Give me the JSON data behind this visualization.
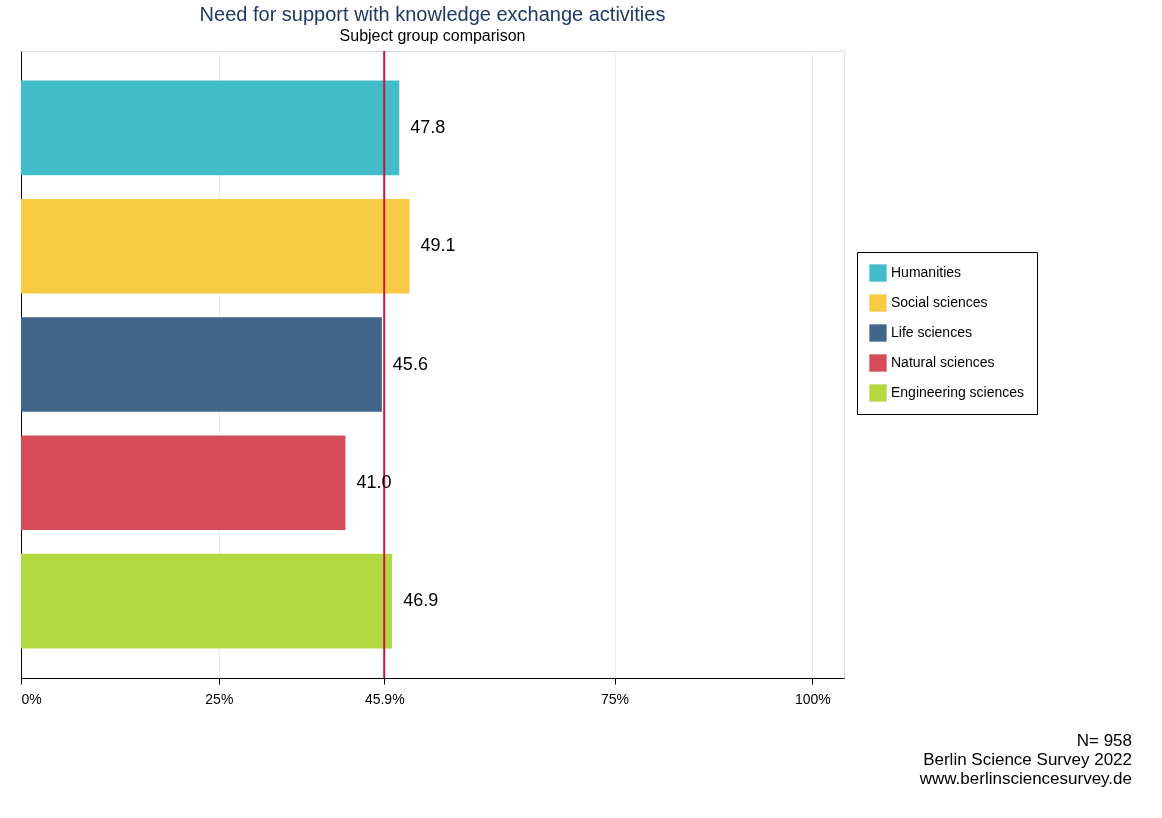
{
  "chart_data": {
    "type": "bar",
    "orientation": "horizontal",
    "title": "Need for support with knowledge exchange activities",
    "subtitle": "Subject group comparison",
    "categories": [
      null,
      null,
      null,
      null,
      null
    ],
    "series": [
      {
        "name": "Humanities",
        "color": "#42bcc8",
        "values": [
          47.8,
          null,
          null,
          null,
          null
        ],
        "value_labels": [
          "47.8",
          null,
          null,
          null,
          null
        ]
      },
      {
        "name": "Social sciences",
        "color": "#f7cb44",
        "values": [
          null,
          49.1,
          null,
          null,
          null
        ],
        "value_labels": [
          null,
          "49.1",
          null,
          null,
          null
        ]
      },
      {
        "name": "Life sciences",
        "color": "#426689",
        "values": [
          null,
          null,
          45.6,
          null,
          null
        ],
        "value_labels": [
          null,
          null,
          "45.6",
          null,
          null
        ]
      },
      {
        "name": "Natural sciences",
        "color": "#d64c58",
        "values": [
          null,
          null,
          null,
          41.0,
          null
        ],
        "value_labels": [
          null,
          null,
          null,
          "41.0",
          null
        ]
      },
      {
        "name": "Engineering sciences",
        "color": "#b3d942",
        "values": [
          null,
          null,
          null,
          null,
          46.9
        ],
        "value_labels": [
          null,
          null,
          null,
          null,
          "46.9"
        ]
      }
    ],
    "xlim": [
      0,
      104
    ],
    "xticks": [
      {
        "value": 0,
        "label": "0%"
      },
      {
        "value": 25,
        "label": "25%"
      },
      {
        "value": 45.9,
        "label": "45.9%"
      },
      {
        "value": 75,
        "label": "75%"
      },
      {
        "value": 100,
        "label": "100%"
      }
    ],
    "ref_lines": [
      {
        "axis": "x",
        "value": 45.9,
        "color": "#c8143c"
      }
    ],
    "grid": "x",
    "legend": "right",
    "tick_labels": "x",
    "annotations": [
      "N= 958",
      "Berlin Science Survey 2022",
      "www.berlinsciencesurvey.de"
    ]
  }
}
